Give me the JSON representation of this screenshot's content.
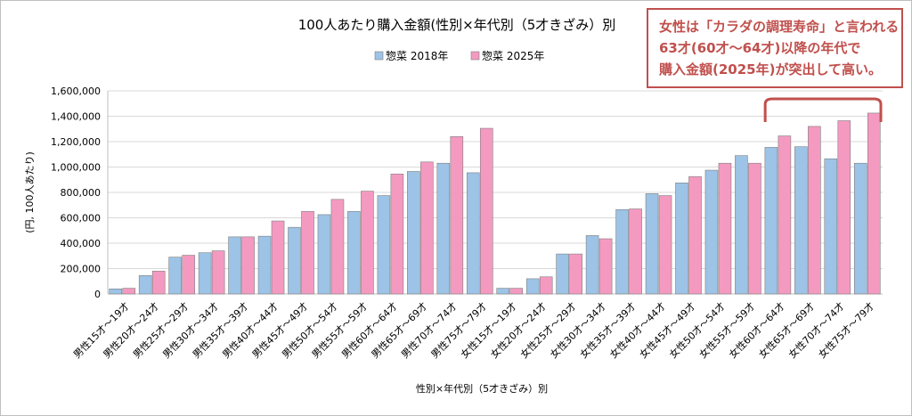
{
  "chart_data": {
    "type": "bar",
    "title": "100人あたり購入金額(性別×年代別（5才きざみ）別",
    "xlabel": "性別×年代別（5才きざみ）別",
    "ylabel": "(円, 100人あたり)",
    "ylim": [
      0,
      1600000
    ],
    "yticks": [
      "0",
      "200,000",
      "400,000",
      "600,000",
      "800,000",
      "1,000,000",
      "1,200,000",
      "1,400,000",
      "1,600,000"
    ],
    "grid": true,
    "legend_position": "top",
    "categories": [
      "男性15才～19才",
      "男性20才～24才",
      "男性25才～29才",
      "男性30才～34才",
      "男性35才～39才",
      "男性40才～44才",
      "男性45才～49才",
      "男性50才～54才",
      "男性55才～59才",
      "男性60才～64才",
      "男性65才～69才",
      "男性70才～74才",
      "男性75才～79才",
      "女性15才～19才",
      "女性20才～24才",
      "女性25才～29才",
      "女性30才～34才",
      "女性35才～39才",
      "女性40才～44才",
      "女性45才～49才",
      "女性50才～54才",
      "女性55才～59才",
      "女性60才～64才",
      "女性65才～69才",
      "女性70才～74才",
      "女性75才～79才"
    ],
    "series": [
      {
        "name": "惣菜 2018年",
        "color": "#9dc3e6",
        "values": [
          40000,
          145000,
          290000,
          325000,
          450000,
          455000,
          525000,
          625000,
          650000,
          775000,
          965000,
          1030000,
          955000,
          45000,
          120000,
          315000,
          460000,
          665000,
          790000,
          875000,
          975000,
          1090000,
          1155000,
          1160000,
          1065000,
          1030000
        ]
      },
      {
        "name": "惣菜 2025年",
        "color": "#f49ac1",
        "values": [
          45000,
          180000,
          305000,
          340000,
          450000,
          575000,
          650000,
          745000,
          810000,
          945000,
          1040000,
          1240000,
          1305000,
          45000,
          135000,
          315000,
          435000,
          670000,
          775000,
          925000,
          1030000,
          1030000,
          1245000,
          1320000,
          1365000,
          1425000
        ]
      }
    ]
  },
  "annotation": {
    "lines": [
      "女性は「カラダの調理寿命」と言われる",
      "63才(60才～64才)以降の年代で",
      "購入金額(2025年)が突出して高い。"
    ],
    "color": "#c0504d"
  }
}
